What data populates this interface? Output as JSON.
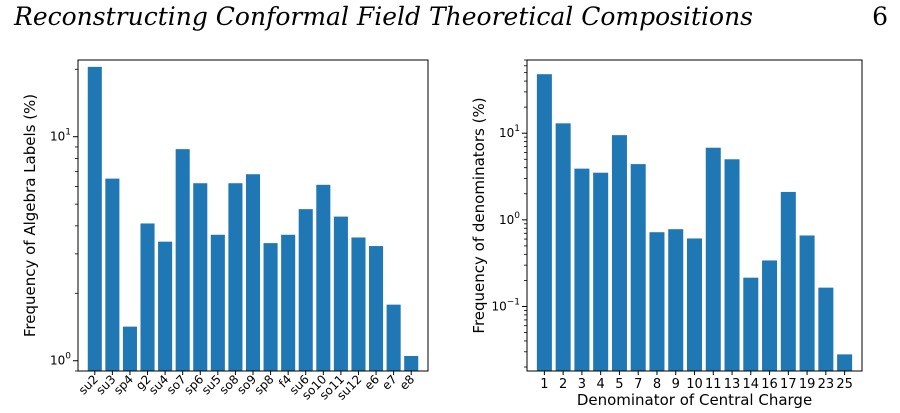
{
  "header": {
    "running_title": "Reconstructing Conformal Field Theoretical Compositions",
    "page_number": "6"
  },
  "chart_data": [
    {
      "type": "bar",
      "ylabel": "Frequency of Algebra Labels (%)",
      "xlabel": "",
      "yscale": "log",
      "ylim": [
        0.9,
        22
      ],
      "yticks": [
        {
          "value": 1,
          "label": "10^0"
        },
        {
          "value": 10,
          "label": "10^1"
        }
      ],
      "categories": [
        "su2",
        "su3",
        "sp4",
        "g2",
        "su4",
        "so7",
        "sp6",
        "su5",
        "so8",
        "so9",
        "sp8",
        "f4",
        "su6",
        "so10",
        "so11",
        "su12",
        "e6",
        "e7",
        "e8"
      ],
      "values": [
        20.5,
        6.5,
        1.42,
        4.1,
        3.4,
        8.8,
        6.2,
        3.65,
        6.2,
        6.8,
        3.35,
        3.65,
        4.75,
        6.1,
        4.4,
        3.55,
        3.25,
        1.78,
        1.05
      ],
      "color": "#1f77b4"
    },
    {
      "type": "bar",
      "ylabel": "Frequency of denominators (%)",
      "xlabel": "Denominator of Central Charge",
      "yscale": "log",
      "ylim": [
        0.018,
        70
      ],
      "yticks": [
        {
          "value": 0.1,
          "label": "10^-1"
        },
        {
          "value": 1,
          "label": "10^0"
        },
        {
          "value": 10,
          "label": "10^1"
        }
      ],
      "categories": [
        "1",
        "2",
        "3",
        "4",
        "5",
        "7",
        "8",
        "9",
        "10",
        "11",
        "13",
        "14",
        "16",
        "17",
        "19",
        "23",
        "25"
      ],
      "values": [
        48,
        13,
        3.9,
        3.5,
        9.5,
        4.4,
        0.72,
        0.78,
        0.61,
        6.8,
        5.0,
        0.215,
        0.34,
        2.1,
        0.66,
        0.165,
        0.028
      ],
      "color": "#1f77b4"
    }
  ]
}
